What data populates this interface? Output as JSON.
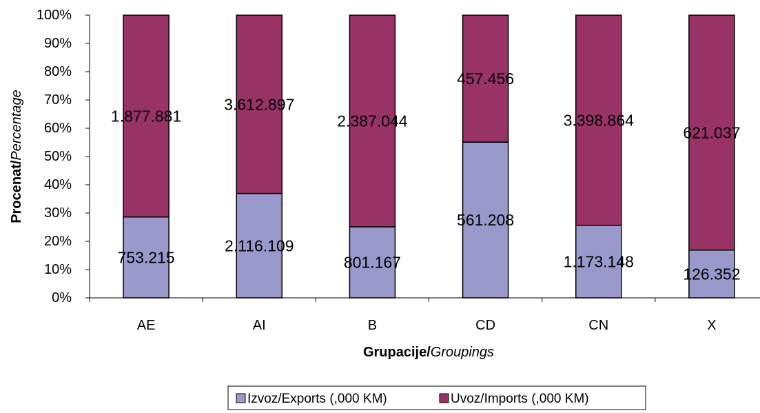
{
  "chart_data": {
    "type": "bar",
    "stacked": "percent",
    "categories": [
      "AE",
      "AI",
      "B",
      "CD",
      "CN",
      "X"
    ],
    "series": [
      {
        "name": "Izvoz/Exports (,000 KM)",
        "color": "#9999cc",
        "values": [
          753215,
          2116109,
          801167,
          561208,
          1173148,
          126352
        ],
        "labels": [
          "753.215",
          "2.116.109",
          "801.167",
          "561.208",
          "1.173.148",
          "126.352"
        ]
      },
      {
        "name": "Uvoz/Imports (,000 KM)",
        "color": "#993366",
        "values": [
          1877881,
          3612897,
          2387044,
          457456,
          3398864,
          621037
        ],
        "labels": [
          "1.877.881",
          "3.612.897",
          "2.387.044",
          "457.456",
          "3.398.864",
          "621.037"
        ]
      }
    ],
    "yticks": [
      "0%",
      "10%",
      "20%",
      "30%",
      "40%",
      "50%",
      "60%",
      "70%",
      "80%",
      "90%",
      "100%"
    ],
    "ylim": [
      0,
      100
    ],
    "ylabel": {
      "bold": "Procenat/",
      "italic": "Percentage"
    },
    "xlabel": {
      "bold": "Grupacije/",
      "italic": "Groupings"
    },
    "grid": false,
    "legend_position": "bottom"
  }
}
